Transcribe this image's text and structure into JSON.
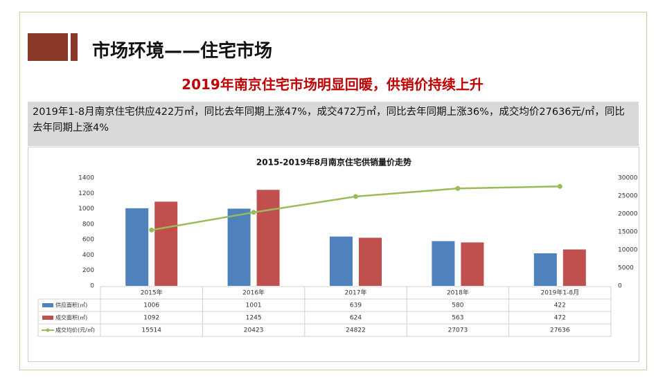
{
  "header": {
    "title": "市场环境——住宅市场",
    "subtitle": "2019年南京住宅市场明显回暖，供销价持续上升",
    "summary": "2019年1-8月南京住宅供应422万㎡，同比去年同期上涨47%，成交472万㎡，同比去年同期上涨36%，成交均价27636元/㎡，同比去年同期上涨4%"
  },
  "chart_data": {
    "type": "bar",
    "title": "2015-2019年8月南京住宅供销量价走势",
    "categories": [
      "2015年",
      "2016年",
      "2017年",
      "2018年",
      "2019年1-8月"
    ],
    "series": [
      {
        "name": "供应面积(㎡)",
        "color": "#4f81bd",
        "type": "bar",
        "values": [
          1006,
          1001,
          639,
          580,
          422
        ]
      },
      {
        "name": "成交面积(㎡)",
        "color": "#c0504d",
        "type": "bar",
        "values": [
          1092,
          1245,
          624,
          563,
          472
        ]
      },
      {
        "name": "成交均价(元/㎡)",
        "color": "#9bbb59",
        "type": "line",
        "axis": "y2",
        "values": [
          15514,
          20423,
          24822,
          27073,
          27636
        ]
      }
    ],
    "ylim": [
      0,
      1400
    ],
    "yticks": [
      0,
      200,
      400,
      600,
      800,
      1000,
      1200,
      1400
    ],
    "y2lim": [
      0,
      30000
    ],
    "y2ticks": [
      0,
      5000,
      10000,
      15000,
      20000,
      25000,
      30000
    ],
    "data_table": true
  }
}
